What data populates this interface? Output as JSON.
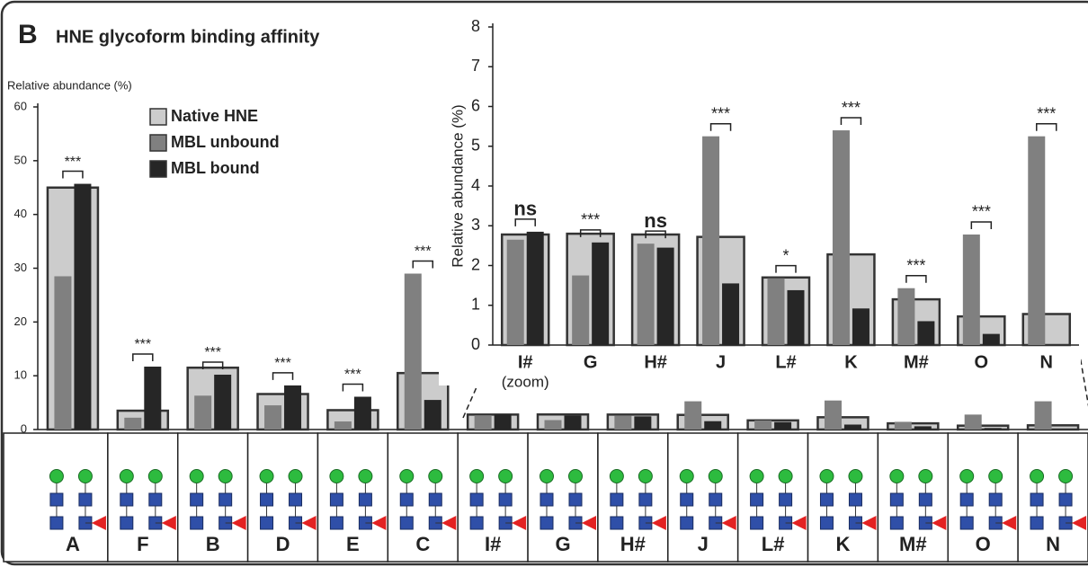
{
  "chart_data": [
    {
      "type": "bar",
      "panel_label": "B",
      "title": "HNE glycoform binding affinity",
      "y_label": "Relative abundance (%)",
      "categories": [
        "A",
        "F",
        "B",
        "D",
        "E",
        "C",
        "I#",
        "G",
        "H#",
        "J",
        "L#",
        "K",
        "M#",
        "O",
        "N"
      ],
      "category_colors": [
        "#2e7d32",
        "#2e7d32",
        "#2e7d32",
        "#2e7d32",
        "#2e7d32",
        "#d32f2f",
        "#222222",
        "#2e7d32",
        "#222222",
        "#d32f2f",
        "#222222",
        "#d32f2f",
        "#222222",
        "#d32f2f",
        "#d32f2f"
      ],
      "series": [
        {
          "name": "Native HNE",
          "color": "#cccccc",
          "values": [
            45,
            3.5,
            11.5,
            6.6,
            3.6,
            10.5,
            2.78,
            2.8,
            2.78,
            2.72,
            1.7,
            2.28,
            1.15,
            0.72,
            0.78
          ]
        },
        {
          "name": "MBL unbound",
          "color": "#808080",
          "values": [
            28.5,
            2.2,
            6.3,
            4.5,
            1.5,
            29,
            2.65,
            1.75,
            2.55,
            5.25,
            1.68,
            5.4,
            1.43,
            2.78,
            5.25
          ]
        },
        {
          "name": "MBL bound",
          "color": "#262626",
          "values": [
            45.7,
            11.7,
            10.2,
            8.2,
            6.1,
            5.5,
            2.85,
            2.58,
            2.45,
            1.55,
            1.38,
            0.92,
            0.6,
            0.28,
            0
          ]
        }
      ],
      "significance": [
        "***",
        "***",
        "***",
        "***",
        "***",
        "***",
        null,
        null,
        null,
        null,
        null,
        null,
        null,
        null,
        null
      ],
      "ylim": [
        0,
        60
      ],
      "yticks": [
        0,
        10,
        20,
        30,
        40,
        50,
        60
      ],
      "grid": false
    },
    {
      "type": "bar",
      "y_label": "Relative abundance (%)",
      "annotation": "(zoom)",
      "categories": [
        "I#",
        "G",
        "H#",
        "J",
        "L#",
        "K",
        "M#",
        "O",
        "N"
      ],
      "category_colors": [
        "#222222",
        "#2e7d32",
        "#222222",
        "#d32f2f",
        "#222222",
        "#d32f2f",
        "#222222",
        "#d32f2f",
        "#d32f2f"
      ],
      "series": [
        {
          "name": "Native HNE",
          "color": "#cccccc",
          "values": [
            2.78,
            2.8,
            2.78,
            2.72,
            1.7,
            2.28,
            1.15,
            0.72,
            0.78
          ]
        },
        {
          "name": "MBL unbound",
          "color": "#808080",
          "values": [
            2.65,
            1.75,
            2.55,
            5.25,
            1.68,
            5.4,
            1.43,
            2.78,
            5.25
          ]
        },
        {
          "name": "MBL bound",
          "color": "#262626",
          "values": [
            2.85,
            2.58,
            2.45,
            1.55,
            1.38,
            0.92,
            0.6,
            0.28,
            0
          ]
        }
      ],
      "significance": [
        "ns",
        "***",
        "ns",
        "***",
        "*",
        "***",
        "***",
        "***",
        "***"
      ],
      "ylim": [
        0,
        8
      ],
      "yticks": [
        0,
        1,
        2,
        3,
        4,
        5,
        6,
        7,
        8
      ],
      "grid": false
    }
  ]
}
